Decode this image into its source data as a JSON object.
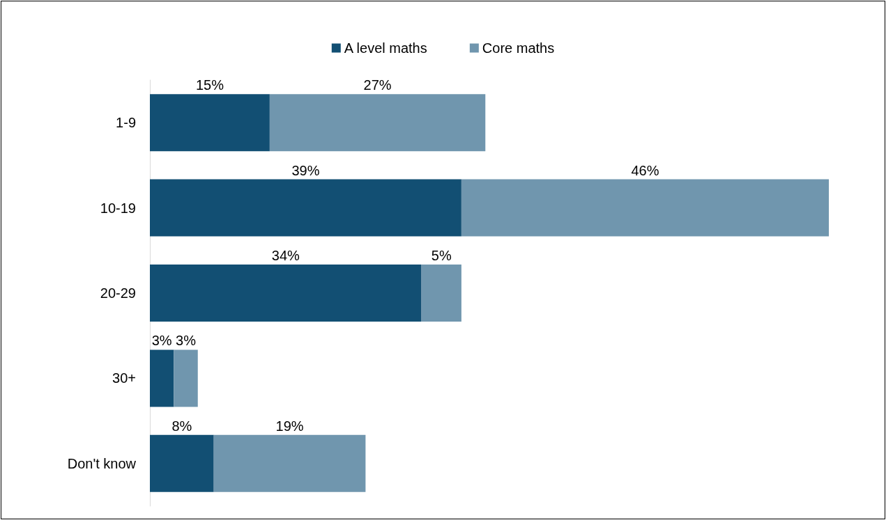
{
  "chart_data": {
    "type": "bar",
    "orientation": "horizontal",
    "stacked": true,
    "legend": "top",
    "categories": [
      "1-9",
      "10-19",
      "20-29",
      "30+",
      "Don't know"
    ],
    "series": [
      {
        "name": "A level maths",
        "color": "#124f73",
        "values": [
          15,
          39,
          34,
          3,
          8
        ],
        "value_labels": [
          "15%",
          "39%",
          "34%",
          "3%",
          "8%"
        ]
      },
      {
        "name": "Core maths",
        "color": "#7096ae",
        "values": [
          27,
          46,
          5,
          3,
          19
        ],
        "value_labels": [
          "27%",
          "46%",
          "5%",
          "3%",
          "19%"
        ]
      }
    ]
  }
}
